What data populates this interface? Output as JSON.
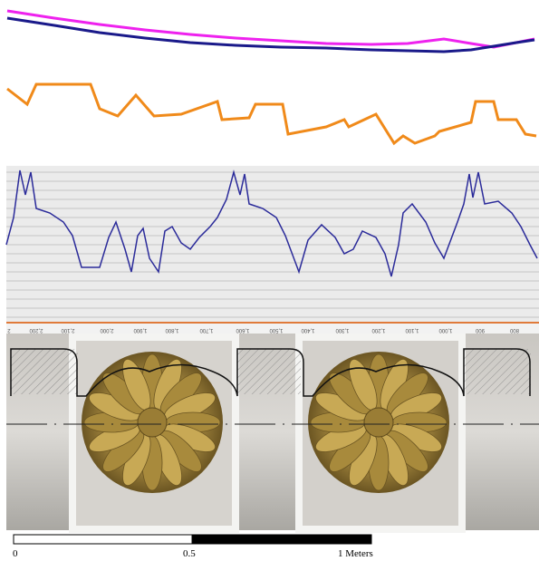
{
  "axis_labels": [
    "2",
    "2,200",
    "2,100",
    "2,000",
    "1,900",
    "1,800",
    "1,700",
    "1,600",
    "1,500",
    "1,400",
    "1,300",
    "1,200",
    "1,100",
    "1,000",
    "900",
    "800"
  ],
  "scale_bar": {
    "labels": [
      "0",
      "0.5",
      "1 Meters"
    ]
  }
}
